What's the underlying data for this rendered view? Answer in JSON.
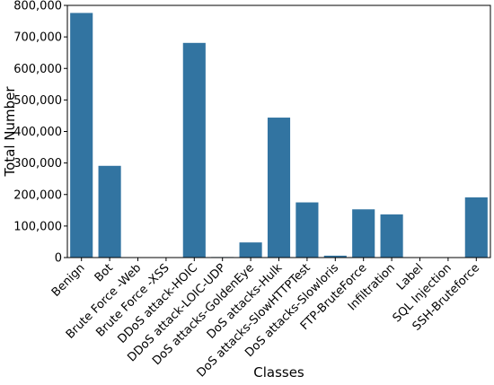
{
  "chart_data": {
    "type": "bar",
    "title": "",
    "xlabel": "Classes",
    "ylabel": "Total Number",
    "categories": [
      "Benign",
      "Bot",
      "Brute Force -Web",
      "Brute Force -XSS",
      "DDoS attack-HOIC",
      "DDoS attack-LOIC-UDP",
      "DoS attacks-GoldenEye",
      "DoS attacks-Hulk",
      "DoS attacks-SlowHTTPTest",
      "DoS attacks-Slowloris",
      "FTP-BruteForce",
      "Infiltration",
      "Label",
      "SQL Injection",
      "SSH-Bruteforce"
    ],
    "values": [
      776000,
      291000,
      800,
      300,
      681000,
      1700,
      48000,
      444000,
      175000,
      6000,
      153000,
      137000,
      20,
      90,
      191000
    ],
    "ylim": [
      0,
      800000
    ],
    "yticks": [
      0,
      100000,
      200000,
      300000,
      400000,
      500000,
      600000,
      700000,
      800000
    ],
    "ytick_labels": [
      "0",
      "100,000",
      "200,000",
      "300,000",
      "400,000",
      "500,000",
      "600,000",
      "700,000",
      "800,000"
    ],
    "bar_color": "#3274a1",
    "grid": false,
    "legend": "none"
  }
}
